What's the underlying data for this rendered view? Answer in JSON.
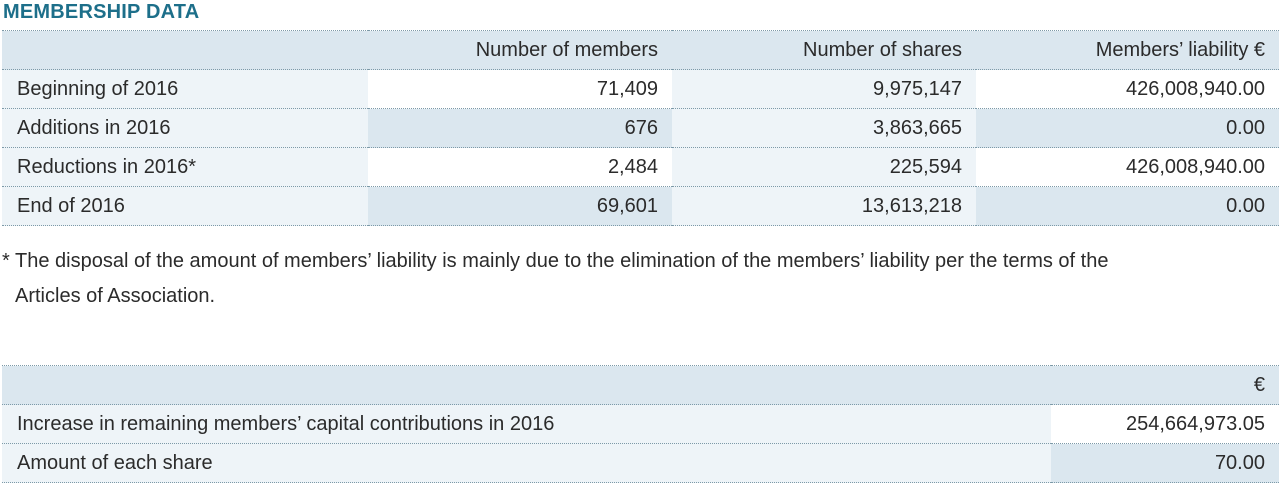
{
  "title": "MEMBERSHIP DATA",
  "table1": {
    "headers": [
      "",
      "Number of members",
      "Number of shares",
      "Members’ liability €"
    ],
    "rows": [
      {
        "label": "Beginning of 2016",
        "members": "71,409",
        "shares": "9,975,147",
        "liability": "426,008,940.00"
      },
      {
        "label": "Additions in 2016",
        "members": "676",
        "shares": "3,863,665",
        "liability": "0.00"
      },
      {
        "label": "Reductions in 2016*",
        "members": "2,484",
        "shares": "225,594",
        "liability": "426,008,940.00"
      },
      {
        "label": "End of 2016",
        "members": "69,601",
        "shares": "13,613,218",
        "liability": "0.00"
      }
    ]
  },
  "footnote": {
    "marker": "*",
    "line1": "The disposal of the amount of members’ liability is mainly due to the elimination of the members’ liability per the terms of the",
    "line2": "Articles of Association."
  },
  "table2": {
    "headers": [
      "",
      "€"
    ],
    "rows": [
      {
        "label": "Increase in remaining members’ capital contributions in 2016",
        "value": "254,664,973.05"
      },
      {
        "label": "Amount of each share",
        "value": "70.00"
      }
    ]
  }
}
